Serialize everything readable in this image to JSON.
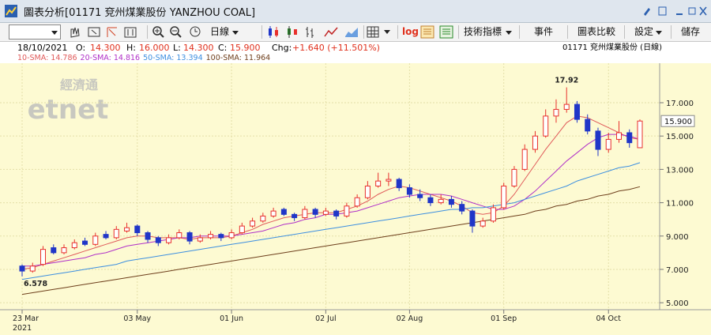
{
  "window": {
    "title": "圖表分析[01171 兗州煤業股份 YANZHOU COAL]"
  },
  "toolbar": {
    "period": "日線",
    "log": "log",
    "indicators": "技術指標",
    "events": "事件",
    "compare": "圖表比較",
    "settings": "設定",
    "save": "儲存"
  },
  "info": {
    "date": "18/10/2021",
    "open": {
      "label": "O:",
      "value": "14.300"
    },
    "high": {
      "label": "H:",
      "value": "16.000"
    },
    "low": {
      "label": "L:",
      "value": "14.300"
    },
    "close": {
      "label": "C:",
      "value": "15.900"
    },
    "change": {
      "label": "Chg:",
      "value": "+1.640 (+11.501%)"
    },
    "symbol": "01171 兗州煤業股份 (日線)"
  },
  "watermark": {
    "cn": "經濟通",
    "en": "etnet"
  },
  "chart_data": {
    "type": "candlestick",
    "categories": [
      "23 Mar",
      null,
      null,
      null,
      null,
      null,
      null,
      null,
      null,
      null,
      null,
      "03 May",
      null,
      null,
      null,
      null,
      null,
      null,
      null,
      null,
      "01 Jun",
      null,
      null,
      null,
      null,
      null,
      null,
      null,
      null,
      "02 Jul",
      null,
      null,
      null,
      null,
      null,
      null,
      null,
      "02 Aug",
      null,
      null,
      null,
      null,
      null,
      null,
      null,
      null,
      "01 Sep",
      null,
      null,
      null,
      null,
      null,
      null,
      null,
      null,
      null,
      "04 Oct",
      null,
      null,
      null
    ],
    "x_year": "2021",
    "open": [
      7.2,
      6.9,
      7.3,
      8.3,
      8.0,
      8.3,
      8.7,
      8.5,
      9.1,
      8.9,
      9.3,
      9.6,
      9.2,
      8.9,
      8.6,
      8.9,
      9.2,
      8.7,
      8.9,
      9.1,
      8.9,
      9.2,
      9.6,
      9.9,
      10.2,
      10.6,
      10.3,
      10.1,
      10.6,
      10.3,
      10.5,
      10.2,
      10.8,
      11.3,
      12.0,
      12.3,
      12.4,
      11.9,
      11.5,
      11.3,
      11.0,
      11.2,
      10.9,
      10.5,
      9.6,
      9.9,
      10.7,
      12.0,
      13.0,
      14.2,
      15.0,
      16.2,
      16.6,
      16.9,
      16.0,
      15.3,
      14.2,
      14.8,
      15.2,
      14.3
    ],
    "high": [
      7.3,
      7.4,
      8.4,
      8.5,
      8.5,
      8.8,
      8.9,
      9.2,
      9.3,
      9.6,
      9.8,
      9.7,
      9.3,
      9.0,
      9.1,
      9.4,
      9.3,
      9.1,
      9.3,
      9.2,
      9.4,
      9.8,
      10.1,
      10.4,
      10.7,
      10.7,
      10.4,
      10.8,
      10.7,
      10.7,
      10.6,
      11.0,
      11.5,
      12.3,
      12.8,
      12.8,
      12.5,
      12.1,
      11.8,
      11.5,
      11.5,
      11.4,
      11.1,
      10.6,
      10.1,
      10.9,
      12.2,
      13.2,
      14.5,
      15.3,
      16.6,
      17.2,
      17.92,
      17.1,
      16.3,
      15.5,
      15.2,
      15.9,
      15.4,
      16.0
    ],
    "low": [
      6.578,
      6.8,
      7.2,
      7.9,
      7.9,
      8.2,
      8.4,
      8.4,
      8.8,
      8.8,
      9.2,
      9.0,
      8.6,
      8.4,
      8.5,
      8.8,
      8.5,
      8.6,
      8.8,
      8.7,
      8.8,
      9.1,
      9.5,
      9.8,
      10.1,
      10.2,
      9.9,
      10.0,
      10.1,
      10.2,
      10.0,
      10.1,
      10.7,
      11.2,
      11.9,
      12.0,
      11.7,
      11.3,
      11.1,
      10.8,
      10.9,
      10.7,
      10.3,
      9.2,
      9.5,
      9.8,
      10.6,
      11.9,
      12.9,
      14.0,
      14.9,
      15.8,
      16.4,
      15.8,
      15.1,
      13.8,
      14.0,
      14.6,
      14.3,
      14.3
    ],
    "close": [
      6.9,
      7.2,
      8.2,
      8.0,
      8.3,
      8.6,
      8.5,
      9.0,
      8.9,
      9.4,
      9.5,
      9.2,
      8.8,
      8.6,
      8.9,
      9.2,
      8.7,
      8.9,
      9.1,
      8.9,
      9.2,
      9.6,
      9.9,
      10.2,
      10.5,
      10.3,
      10.1,
      10.6,
      10.3,
      10.5,
      10.2,
      10.8,
      11.3,
      12.0,
      12.3,
      12.4,
      11.9,
      11.5,
      11.3,
      11.0,
      11.2,
      10.9,
      10.5,
      9.6,
      9.9,
      10.7,
      12.0,
      13.0,
      14.2,
      15.0,
      16.2,
      16.6,
      16.9,
      16.0,
      15.3,
      14.2,
      14.8,
      15.2,
      14.6,
      15.9
    ],
    "up_color": "#e8302c",
    "down_color": "#2036c8",
    "series": [
      {
        "name": "10-SMA: 14.786",
        "color": "#e05a5a",
        "values": [
          7.0,
          7.1,
          7.3,
          7.5,
          7.7,
          7.9,
          8.1,
          8.3,
          8.5,
          8.7,
          8.9,
          9.0,
          9.0,
          8.9,
          8.9,
          8.9,
          8.8,
          8.9,
          8.9,
          8.9,
          9.0,
          9.2,
          9.4,
          9.7,
          9.9,
          10.1,
          10.2,
          10.3,
          10.4,
          10.4,
          10.4,
          10.6,
          10.8,
          11.1,
          11.5,
          11.8,
          12.0,
          11.9,
          11.7,
          11.5,
          11.3,
          11.1,
          10.8,
          10.4,
          10.3,
          10.4,
          10.8,
          11.5,
          12.4,
          13.3,
          14.2,
          15.0,
          15.8,
          16.2,
          16.1,
          15.8,
          15.5,
          15.2,
          14.9,
          14.8
        ]
      },
      {
        "name": "20-SMA: 14.816",
        "color": "#b030c8",
        "values": [
          7.2,
          7.2,
          7.3,
          7.4,
          7.5,
          7.6,
          7.7,
          7.9,
          8.0,
          8.2,
          8.4,
          8.5,
          8.6,
          8.7,
          8.8,
          8.9,
          8.9,
          9.0,
          9.0,
          9.0,
          9.0,
          9.1,
          9.2,
          9.3,
          9.5,
          9.7,
          9.8,
          10.0,
          10.1,
          10.3,
          10.3,
          10.4,
          10.5,
          10.7,
          10.9,
          11.1,
          11.3,
          11.4,
          11.5,
          11.5,
          11.5,
          11.4,
          11.2,
          11.0,
          10.8,
          10.6,
          10.6,
          10.8,
          11.2,
          11.7,
          12.3,
          12.9,
          13.5,
          14.0,
          14.5,
          14.9,
          15.1,
          15.1,
          15.0,
          14.8
        ]
      },
      {
        "name": "50-SMA: 13.394",
        "color": "#3d8fe0",
        "values": [
          6.4,
          6.5,
          6.6,
          6.7,
          6.8,
          6.9,
          7.0,
          7.1,
          7.2,
          7.3,
          7.5,
          7.6,
          7.7,
          7.8,
          7.9,
          8.0,
          8.1,
          8.2,
          8.3,
          8.4,
          8.5,
          8.6,
          8.7,
          8.8,
          8.9,
          9.0,
          9.1,
          9.2,
          9.3,
          9.4,
          9.5,
          9.6,
          9.7,
          9.8,
          9.9,
          10.0,
          10.1,
          10.2,
          10.3,
          10.4,
          10.5,
          10.6,
          10.6,
          10.7,
          10.7,
          10.8,
          10.9,
          11.0,
          11.2,
          11.4,
          11.6,
          11.8,
          12.0,
          12.3,
          12.5,
          12.7,
          12.9,
          13.1,
          13.2,
          13.4
        ]
      },
      {
        "name": "100-SMA: 11.964",
        "color": "#6e3f1c",
        "values": [
          5.5,
          5.6,
          5.7,
          5.8,
          5.9,
          6.0,
          6.1,
          6.2,
          6.3,
          6.4,
          6.5,
          6.6,
          6.7,
          6.8,
          6.9,
          7.0,
          7.1,
          7.2,
          7.3,
          7.4,
          7.5,
          7.6,
          7.7,
          7.8,
          7.9,
          8.0,
          8.1,
          8.2,
          8.3,
          8.4,
          8.5,
          8.6,
          8.7,
          8.8,
          8.9,
          9.0,
          9.1,
          9.2,
          9.3,
          9.4,
          9.5,
          9.6,
          9.7,
          9.8,
          9.9,
          10.0,
          10.1,
          10.2,
          10.3,
          10.5,
          10.6,
          10.8,
          10.9,
          11.1,
          11.2,
          11.4,
          11.5,
          11.7,
          11.8,
          11.96
        ]
      }
    ],
    "ylim": [
      4.58,
      19.37
    ],
    "yticks": [
      {
        "value": 5,
        "label": "5.000"
      },
      {
        "value": 7,
        "label": "7.000"
      },
      {
        "value": 9,
        "label": "9.000"
      },
      {
        "value": 11,
        "label": "11.000"
      },
      {
        "value": 13,
        "label": "13.000"
      },
      {
        "value": 15,
        "label": "15.000"
      },
      {
        "value": 17,
        "label": "17.000"
      }
    ],
    "grid": true,
    "high_label": "17.92",
    "low_label": "6.578",
    "last_price_label": "15.900"
  }
}
